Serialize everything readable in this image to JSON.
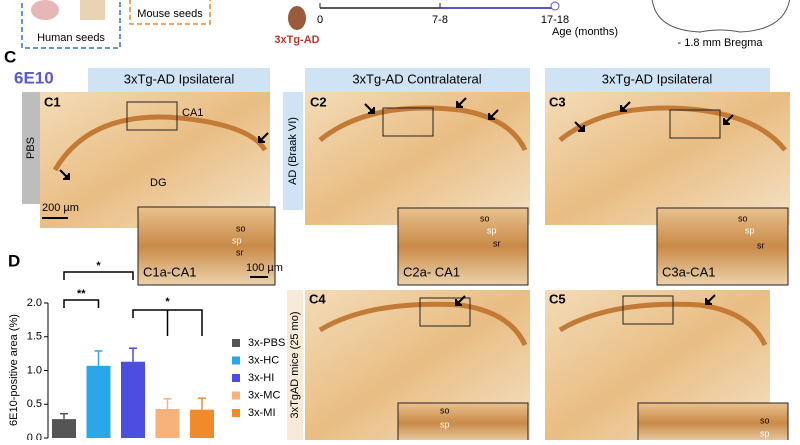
{
  "figure": {
    "top": {
      "human_seeds": "Human seeds",
      "mouse_seeds": "Mouse seeds",
      "model": "3xTg-AD",
      "timeline_ticks": [
        "0",
        "7-8",
        "17-18"
      ],
      "timeline_label": "Age (months)",
      "bregma": "- 1.8 mm Bregma"
    },
    "panel_c": {
      "letter": "C",
      "stain": "6E10",
      "headers": [
        "3xTg-AD Ipsilateral",
        "3xTg-AD Contralateral",
        "3xTg-AD Ipsilateral"
      ],
      "side_labels": [
        "PBS",
        "AD (Braak VI)",
        "3xTgAD mice (25 mo)"
      ],
      "images": [
        "C1",
        "C2",
        "C3",
        "C4",
        "C5"
      ],
      "insets": [
        "C1a-CA1",
        "C2a- CA1",
        "C3a-CA1"
      ],
      "region_labels": [
        "CA1",
        "DG"
      ],
      "layers": [
        "so",
        "sp",
        "sr"
      ],
      "scale_bars": [
        "200 µm",
        "100 µm"
      ]
    },
    "panel_d": {
      "letter": "D"
    }
  },
  "chart_data": {
    "type": "bar",
    "y_label": "6E10-positive area (%)",
    "categories": [
      "3x-PBS",
      "3x-HC",
      "3x-HI",
      "3x-MC",
      "3x-MI"
    ],
    "values": [
      0.28,
      1.07,
      1.13,
      0.43,
      0.42
    ],
    "errors": [
      0.08,
      0.22,
      0.2,
      0.15,
      0.17
    ],
    "colors": [
      "#555555",
      "#2aa7e8",
      "#4b4ee0",
      "#f5b27a",
      "#f08a2a"
    ],
    "ylim": [
      0,
      2.0
    ],
    "yticks": [
      {
        "value": 0,
        "label": "0.0"
      },
      {
        "value": 0.5,
        "label": "0.5"
      },
      {
        "value": 1,
        "label": "1.0"
      },
      {
        "value": 1.5,
        "label": "1.5"
      },
      {
        "value": 2,
        "label": "2.0"
      }
    ],
    "annotations": [
      "*",
      "**",
      "*"
    ]
  }
}
